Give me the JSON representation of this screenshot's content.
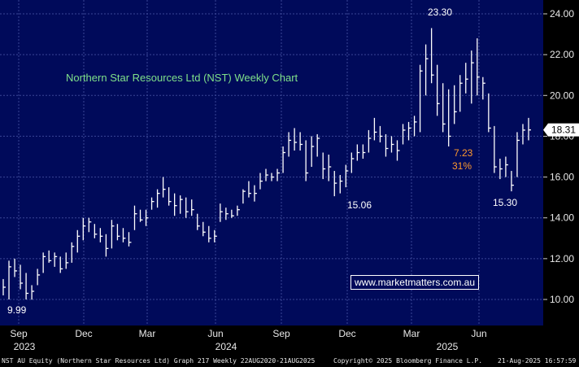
{
  "chart_data": {
    "type": "ohlc",
    "title": "Northern Star Resources Ltd (NST) Weekly Chart",
    "ylim": [
      8.5,
      25
    ],
    "y_ticks": [
      10.0,
      12.0,
      14.0,
      16.0,
      18.0,
      20.0,
      22.0,
      24.0
    ],
    "y_tick_labels": [
      "10.00",
      "12.00",
      "14.00",
      "16.00",
      "18.00",
      "20.00",
      "22.00",
      "24.00"
    ],
    "x_months": [
      "Sep",
      "Dec",
      "Mar",
      "Jun",
      "Sep",
      "Dec",
      "Mar",
      "Jun"
    ],
    "x_years": [
      "2023",
      "2024",
      "2025"
    ],
    "last_price_label": "18.31",
    "annotations": [
      "9.99",
      "15.06",
      "23.30",
      "7.23",
      "31%",
      "15.30"
    ],
    "bars": [
      {
        "l": 10.2,
        "h": 11.0,
        "c": 10.6
      },
      {
        "l": 10.0,
        "h": 11.9,
        "c": 11.6
      },
      {
        "l": 11.1,
        "h": 12.0,
        "c": 11.4
      },
      {
        "l": 10.5,
        "h": 11.7,
        "c": 10.8
      },
      {
        "l": 10.0,
        "h": 11.3,
        "c": 10.3
      },
      {
        "l": 9.99,
        "h": 10.7,
        "c": 10.4
      },
      {
        "l": 10.7,
        "h": 11.5,
        "c": 11.2
      },
      {
        "l": 11.3,
        "h": 12.3,
        "c": 12.1
      },
      {
        "l": 11.8,
        "h": 12.4,
        "c": 11.9
      },
      {
        "l": 11.6,
        "h": 12.3,
        "c": 12.1
      },
      {
        "l": 11.3,
        "h": 12.1,
        "c": 11.5
      },
      {
        "l": 11.5,
        "h": 12.3,
        "c": 11.8
      },
      {
        "l": 11.8,
        "h": 12.8,
        "c": 12.6
      },
      {
        "l": 12.3,
        "h": 13.4,
        "c": 13.1
      },
      {
        "l": 12.9,
        "h": 14.0,
        "c": 13.6
      },
      {
        "l": 13.3,
        "h": 14.0,
        "c": 13.8
      },
      {
        "l": 13.0,
        "h": 13.7,
        "c": 13.2
      },
      {
        "l": 12.8,
        "h": 13.5,
        "c": 13.1
      },
      {
        "l": 12.1,
        "h": 13.2,
        "c": 12.5
      },
      {
        "l": 12.5,
        "h": 13.9,
        "c": 13.6
      },
      {
        "l": 12.9,
        "h": 13.7,
        "c": 13.1
      },
      {
        "l": 12.8,
        "h": 13.5,
        "c": 13.0
      },
      {
        "l": 12.6,
        "h": 13.3,
        "c": 12.8
      },
      {
        "l": 13.4,
        "h": 14.6,
        "c": 14.2
      },
      {
        "l": 13.8,
        "h": 14.4,
        "c": 13.9
      },
      {
        "l": 13.6,
        "h": 14.4,
        "c": 14.0
      },
      {
        "l": 14.4,
        "h": 15.0,
        "c": 14.8
      },
      {
        "l": 14.5,
        "h": 15.4,
        "c": 15.2
      },
      {
        "l": 15.0,
        "h": 16.0,
        "c": 15.4
      },
      {
        "l": 14.6,
        "h": 15.5,
        "c": 14.8
      },
      {
        "l": 14.1,
        "h": 15.2,
        "c": 14.6
      },
      {
        "l": 14.2,
        "h": 15.1,
        "c": 14.9
      },
      {
        "l": 14.0,
        "h": 15.0,
        "c": 14.3
      },
      {
        "l": 14.1,
        "h": 14.9,
        "c": 14.4
      },
      {
        "l": 13.4,
        "h": 14.2,
        "c": 13.6
      },
      {
        "l": 13.1,
        "h": 13.8,
        "c": 13.3
      },
      {
        "l": 12.8,
        "h": 13.6,
        "c": 13.0
      },
      {
        "l": 12.8,
        "h": 13.4,
        "c": 13.1
      },
      {
        "l": 13.8,
        "h": 14.7,
        "c": 14.3
      },
      {
        "l": 13.9,
        "h": 14.5,
        "c": 14.2
      },
      {
        "l": 14.0,
        "h": 14.4,
        "c": 14.1
      },
      {
        "l": 14.1,
        "h": 14.6,
        "c": 14.4
      },
      {
        "l": 14.7,
        "h": 15.4,
        "c": 15.3
      },
      {
        "l": 15.0,
        "h": 15.8,
        "c": 15.2
      },
      {
        "l": 14.8,
        "h": 15.6,
        "c": 15.2
      },
      {
        "l": 15.4,
        "h": 16.2,
        "c": 15.8
      },
      {
        "l": 15.8,
        "h": 16.4,
        "c": 16.1
      },
      {
        "l": 15.8,
        "h": 16.2,
        "c": 16.0
      },
      {
        "l": 15.8,
        "h": 16.4,
        "c": 16.2
      },
      {
        "l": 16.2,
        "h": 17.5,
        "c": 17.2
      },
      {
        "l": 17.0,
        "h": 18.2,
        "c": 17.8
      },
      {
        "l": 17.3,
        "h": 18.4,
        "c": 17.7
      },
      {
        "l": 17.3,
        "h": 18.2,
        "c": 17.6
      },
      {
        "l": 15.8,
        "h": 17.8,
        "c": 16.2
      },
      {
        "l": 16.5,
        "h": 18.0,
        "c": 17.5
      },
      {
        "l": 17.0,
        "h": 18.1,
        "c": 17.9
      },
      {
        "l": 15.9,
        "h": 17.2,
        "c": 16.4
      },
      {
        "l": 15.8,
        "h": 17.1,
        "c": 16.5
      },
      {
        "l": 15.06,
        "h": 16.3,
        "c": 15.7
      },
      {
        "l": 15.2,
        "h": 16.1,
        "c": 15.8
      },
      {
        "l": 15.5,
        "h": 16.6,
        "c": 16.3
      },
      {
        "l": 16.2,
        "h": 17.2,
        "c": 16.9
      },
      {
        "l": 16.8,
        "h": 17.6,
        "c": 17.2
      },
      {
        "l": 16.9,
        "h": 17.6,
        "c": 17.2
      },
      {
        "l": 17.2,
        "h": 18.3,
        "c": 17.9
      },
      {
        "l": 17.8,
        "h": 18.9,
        "c": 18.2
      },
      {
        "l": 17.7,
        "h": 18.5,
        "c": 18.0
      },
      {
        "l": 17.0,
        "h": 18.1,
        "c": 17.4
      },
      {
        "l": 17.2,
        "h": 18.0,
        "c": 17.6
      },
      {
        "l": 16.8,
        "h": 17.8,
        "c": 17.3
      },
      {
        "l": 17.6,
        "h": 18.6,
        "c": 18.3
      },
      {
        "l": 17.8,
        "h": 18.7,
        "c": 18.4
      },
      {
        "l": 18.0,
        "h": 19.0,
        "c": 18.7
      },
      {
        "l": 18.2,
        "h": 21.5,
        "c": 21.2
      },
      {
        "l": 20.0,
        "h": 22.5,
        "c": 21.8
      },
      {
        "l": 20.6,
        "h": 23.3,
        "c": 21.0
      },
      {
        "l": 19.0,
        "h": 21.5,
        "c": 19.6
      },
      {
        "l": 18.2,
        "h": 20.6,
        "c": 18.6
      },
      {
        "l": 17.5,
        "h": 20.3,
        "c": 18.0
      },
      {
        "l": 18.6,
        "h": 20.5,
        "c": 19.2
      },
      {
        "l": 19.2,
        "h": 21.0,
        "c": 20.6
      },
      {
        "l": 20.1,
        "h": 21.6,
        "c": 20.8
      },
      {
        "l": 19.6,
        "h": 22.2,
        "c": 21.6
      },
      {
        "l": 20.0,
        "h": 22.8,
        "c": 20.9
      },
      {
        "l": 19.8,
        "h": 20.9,
        "c": 20.6
      },
      {
        "l": 18.2,
        "h": 20.1,
        "c": 18.4
      },
      {
        "l": 16.2,
        "h": 18.5,
        "c": 16.5
      },
      {
        "l": 15.9,
        "h": 16.9,
        "c": 16.4
      },
      {
        "l": 16.0,
        "h": 17.0,
        "c": 16.6
      },
      {
        "l": 15.3,
        "h": 16.3,
        "c": 15.6
      },
      {
        "l": 16.0,
        "h": 18.2,
        "c": 17.8
      },
      {
        "l": 17.6,
        "h": 18.6,
        "c": 18.3
      },
      {
        "l": 17.8,
        "h": 18.9,
        "c": 18.31
      }
    ]
  },
  "watermark": "www.marketmatters.com.au",
  "footer": {
    "left": "NST AU Equity (Northern Star Resources Ltd) Graph 217  Weekly 22AUG2020-21AUG2025",
    "center": "Copyright© 2025 Bloomberg Finance L.P.",
    "right": "21-Aug-2025 16:57:59"
  },
  "colors": {
    "plot_bg": "#000a5a",
    "grid": "#3a4696",
    "bars": "#ffffff",
    "title": "#7fe08a",
    "annotation_white": "#ffffff",
    "annotation_orange": "#ff9a2e",
    "price_tag_bg": "#ffffff",
    "price_tag_text": "#000000"
  }
}
